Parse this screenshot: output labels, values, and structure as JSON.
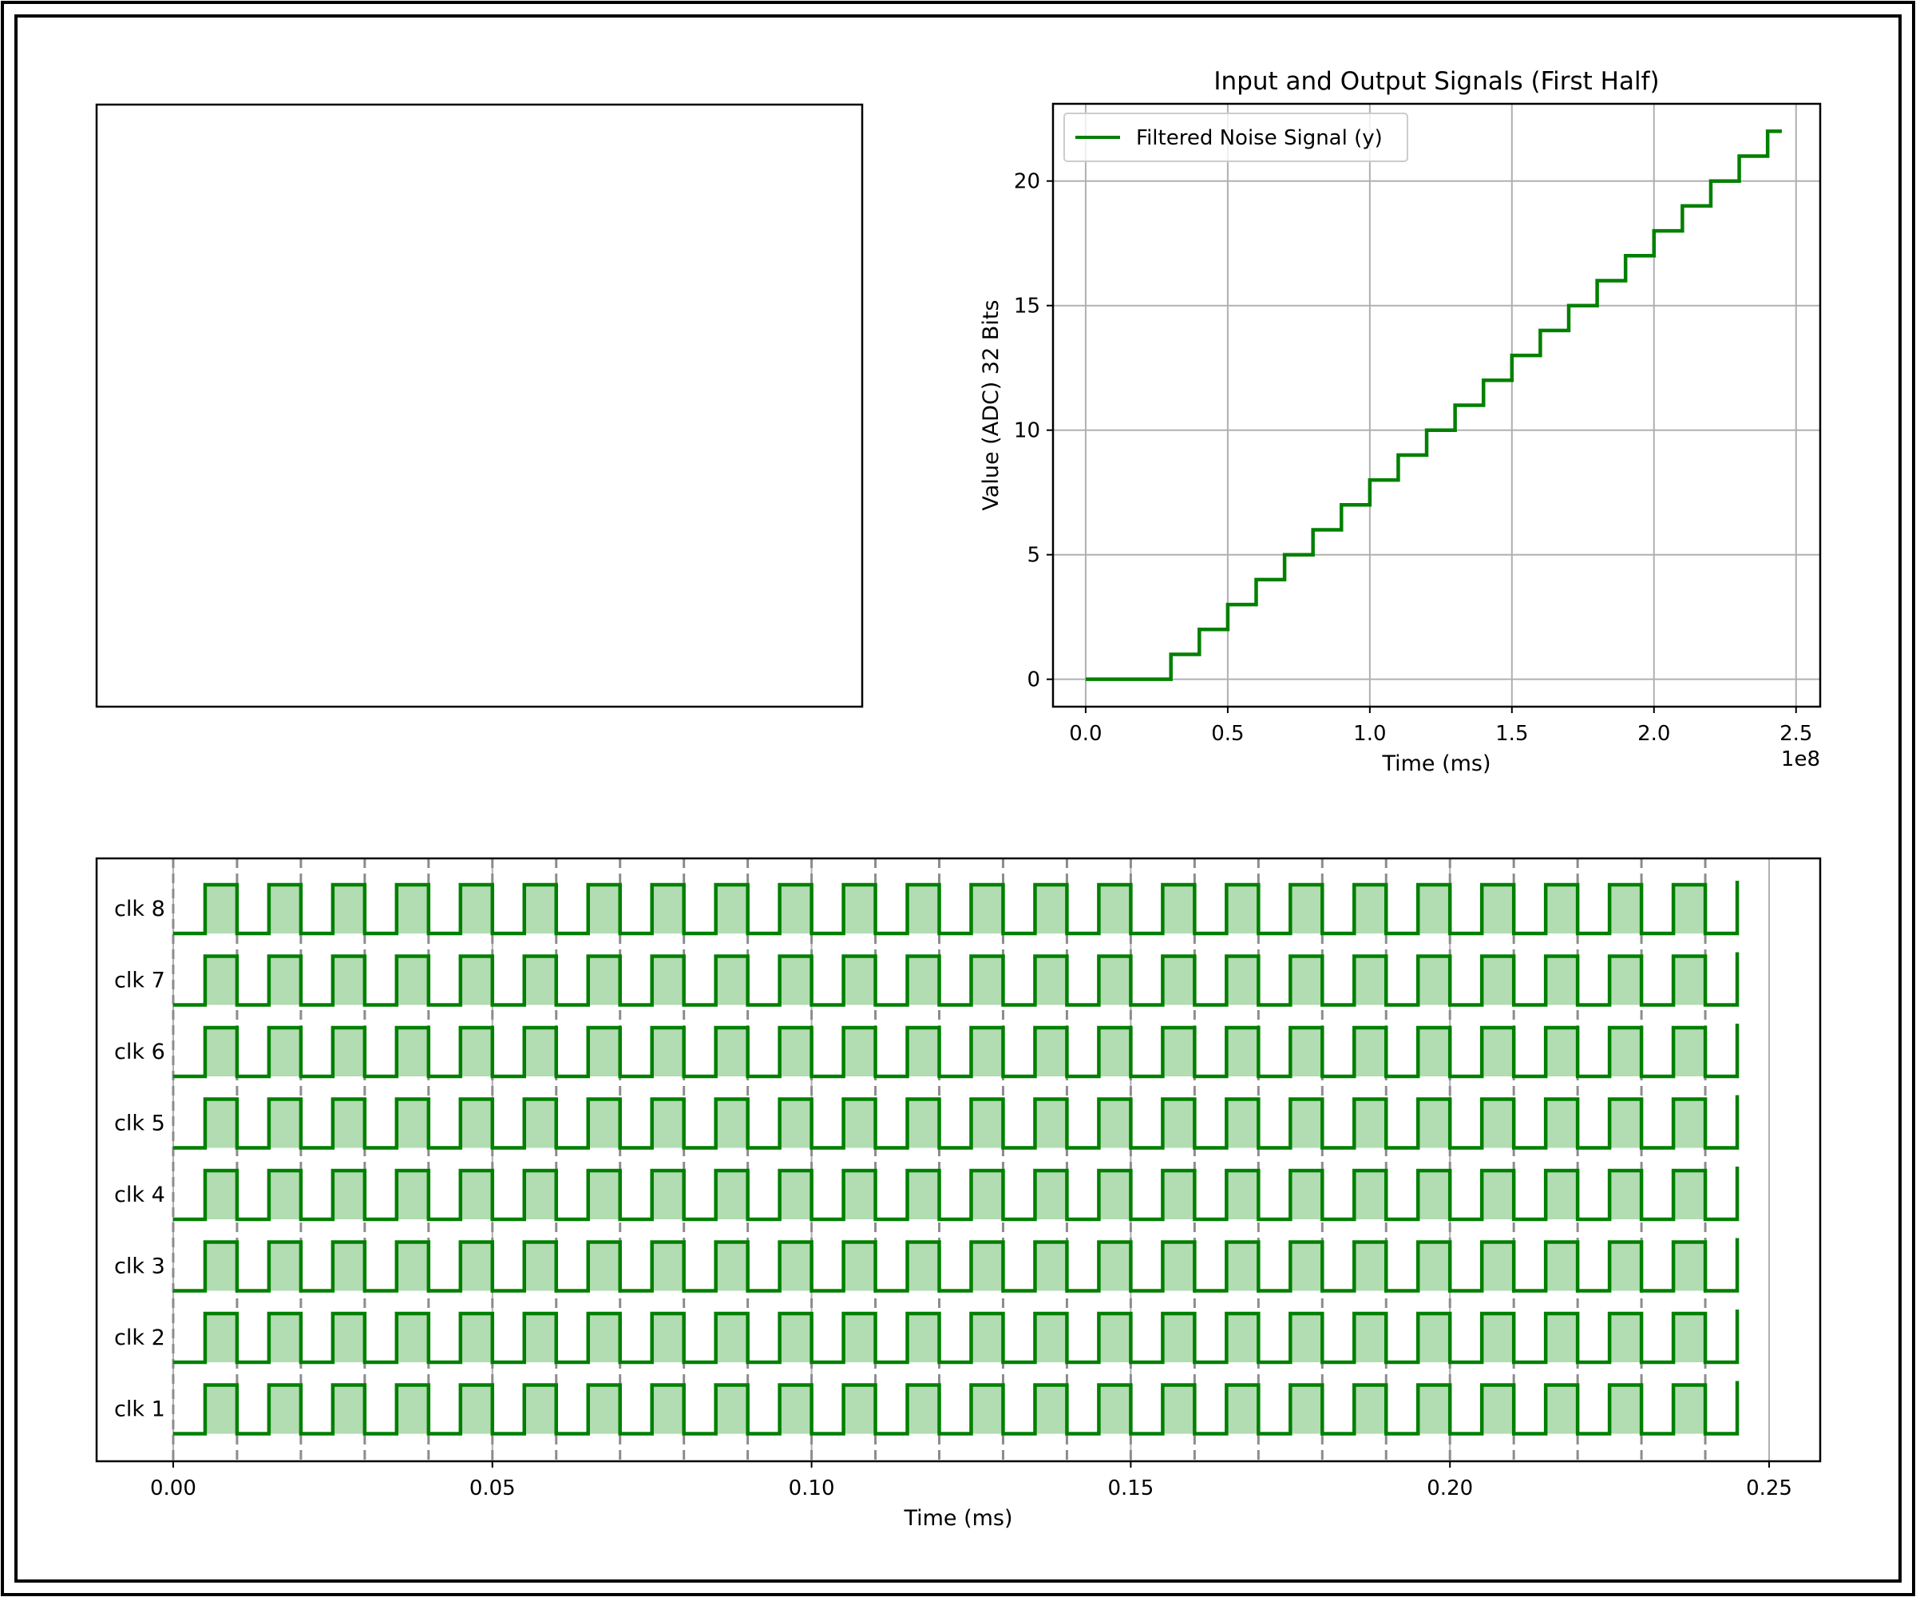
{
  "chart_data": [
    {
      "id": "empty-panel",
      "type": "empty"
    },
    {
      "id": "signal",
      "type": "line",
      "step": true,
      "title": "Input and Output Signals (First Half)",
      "xlabel": "Time (ms)",
      "ylabel": "Value (ADC) 32 Bits",
      "x_offset_label": "1e8",
      "xlim": [
        -0.115,
        2.585
      ],
      "ylim": [
        -1.1,
        23.1
      ],
      "xticks": [
        0.0,
        0.5,
        1.0,
        1.5,
        2.0,
        2.5
      ],
      "xtick_labels": [
        "0.0",
        "0.5",
        "1.0",
        "1.5",
        "2.0",
        "2.5"
      ],
      "yticks": [
        0,
        5,
        10,
        15,
        20
      ],
      "ytick_labels": [
        "0",
        "5",
        "10",
        "15",
        "20"
      ],
      "grid": true,
      "legend": "upper-left",
      "color": "#008000",
      "series": [
        {
          "name": "Filtered Noise Signal (y)",
          "x": [
            0.0,
            0.3,
            0.4,
            0.5,
            0.6,
            0.7,
            0.8,
            0.9,
            1.0,
            1.1,
            1.2,
            1.3,
            1.4,
            1.5,
            1.6,
            1.7,
            1.8,
            1.9,
            2.0,
            2.1,
            2.2,
            2.3,
            2.4,
            2.45
          ],
          "y": [
            0,
            1,
            2,
            3,
            4,
            5,
            6,
            7,
            8,
            9,
            10,
            11,
            12,
            13,
            14,
            15,
            16,
            17,
            18,
            19,
            20,
            21,
            22,
            22
          ]
        }
      ]
    },
    {
      "id": "clocks",
      "type": "timing",
      "xlabel": "Time (ms)",
      "xlim": [
        -0.012,
        0.258
      ],
      "xticks": [
        0.0,
        0.05,
        0.1,
        0.15,
        0.2,
        0.25
      ],
      "xtick_labels": [
        "0.00",
        "0.05",
        "0.10",
        "0.15",
        "0.20",
        "0.25"
      ],
      "grid": true,
      "dashed_marks": [
        0.0,
        0.01,
        0.02,
        0.03,
        0.04,
        0.05,
        0.06,
        0.07,
        0.08,
        0.09,
        0.1,
        0.11,
        0.12,
        0.13,
        0.14,
        0.15,
        0.16,
        0.17,
        0.18,
        0.19,
        0.2,
        0.21,
        0.22,
        0.23,
        0.24
      ],
      "period": 0.01,
      "high_start": 0.005,
      "cycles": 24,
      "end": 0.245,
      "color": "#008000",
      "fill_color": "#b2dcb2",
      "channels": [
        "clk 8",
        "clk 7",
        "clk 6",
        "clk 5",
        "clk 4",
        "clk 3",
        "clk 2",
        "clk 1"
      ]
    }
  ]
}
